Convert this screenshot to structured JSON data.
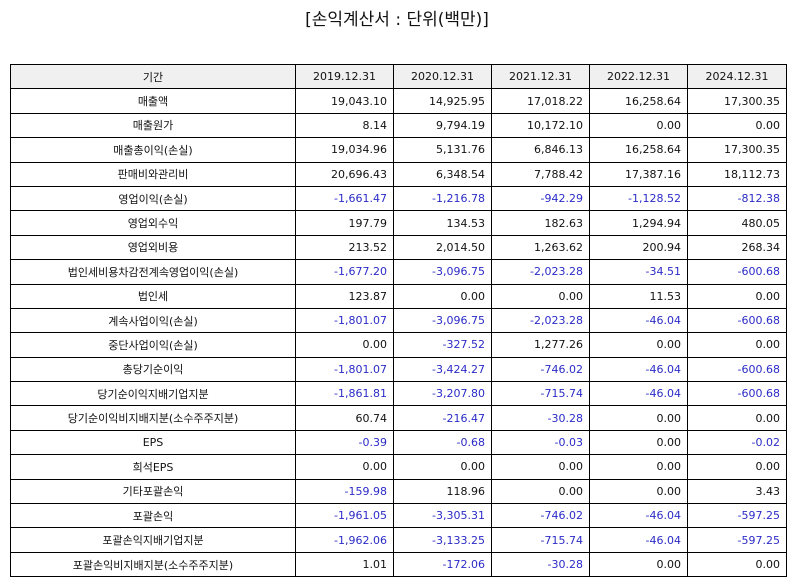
{
  "title": "[손익계산서 : 단위(백만)]",
  "table": {
    "header": [
      "기간",
      "2019.12.31",
      "2020.12.31",
      "2021.12.31",
      "2022.12.31",
      "2024.12.31"
    ],
    "rows": [
      [
        "매출액",
        "19,043.10",
        "14,925.95",
        "17,018.22",
        "16,258.64",
        "17,300.35"
      ],
      [
        "매출원가",
        "8.14",
        "9,794.19",
        "10,172.10",
        "0.00",
        "0.00"
      ],
      [
        "매출총이익(손실)",
        "19,034.96",
        "5,131.76",
        "6,846.13",
        "16,258.64",
        "17,300.35"
      ],
      [
        "판매비와관리비",
        "20,696.43",
        "6,348.54",
        "7,788.42",
        "17,387.16",
        "18,112.73"
      ],
      [
        "영업이익(손실)",
        "-1,661.47",
        "-1,216.78",
        "-942.29",
        "-1,128.52",
        "-812.38"
      ],
      [
        "영업외수익",
        "197.79",
        "134.53",
        "182.63",
        "1,294.94",
        "480.05"
      ],
      [
        "영업외비용",
        "213.52",
        "2,014.50",
        "1,263.62",
        "200.94",
        "268.34"
      ],
      [
        "법인세비용차감전계속영업이익(손실)",
        "-1,677.20",
        "-3,096.75",
        "-2,023.28",
        "-34.51",
        "-600.68"
      ],
      [
        "법인세",
        "123.87",
        "0.00",
        "0.00",
        "11.53",
        "0.00"
      ],
      [
        "계속사업이익(손실)",
        "-1,801.07",
        "-3,096.75",
        "-2,023.28",
        "-46.04",
        "-600.68"
      ],
      [
        "중단사업이익(손실)",
        "0.00",
        "-327.52",
        "1,277.26",
        "0.00",
        "0.00"
      ],
      [
        "총당기순이익",
        "-1,801.07",
        "-3,424.27",
        "-746.02",
        "-46.04",
        "-600.68"
      ],
      [
        "당기순이익지배기업지분",
        "-1,861.81",
        "-3,207.80",
        "-715.74",
        "-46.04",
        "-600.68"
      ],
      [
        "당기순이익비지배지분(소수주주지분)",
        "60.74",
        "-216.47",
        "-30.28",
        "0.00",
        "0.00"
      ],
      [
        "EPS",
        "-0.39",
        "-0.68",
        "-0.03",
        "0.00",
        "-0.02"
      ],
      [
        "희석EPS",
        "0.00",
        "0.00",
        "0.00",
        "0.00",
        "0.00"
      ],
      [
        "기타포괄손익",
        "-159.98",
        "118.96",
        "0.00",
        "0.00",
        "3.43"
      ],
      [
        "포괄손익",
        "-1,961.05",
        "-3,305.31",
        "-746.02",
        "-46.04",
        "-597.25"
      ],
      [
        "포괄손익지배기업지분",
        "-1,962.06",
        "-3,133.25",
        "-715.74",
        "-46.04",
        "-597.25"
      ],
      [
        "포괄손익비지배지분(소수주주지분)",
        "1.01",
        "-172.06",
        "-30.28",
        "0.00",
        "0.00"
      ]
    ]
  }
}
